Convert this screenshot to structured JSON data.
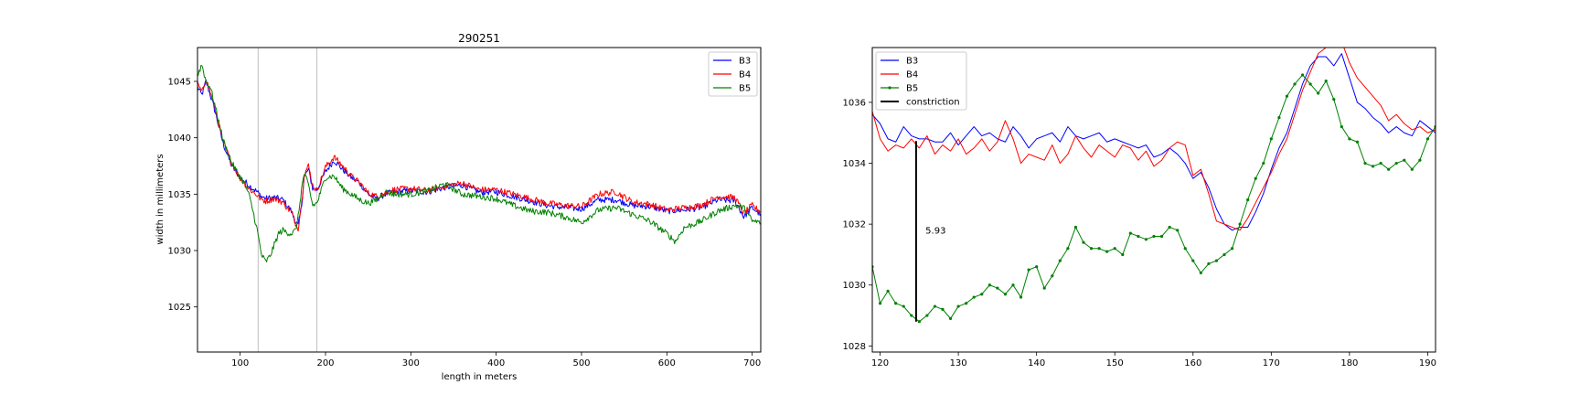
{
  "chart_data": [
    {
      "type": "line",
      "title": "290251",
      "xlabel": "length in meters",
      "ylabel": "width in millimeters",
      "xlim": [
        50,
        710
      ],
      "ylim": [
        1021,
        1048
      ],
      "xticks": [
        100,
        200,
        300,
        400,
        500,
        600,
        700
      ],
      "yticks": [
        1025,
        1030,
        1035,
        1040,
        1045
      ],
      "grid": false,
      "legend_position": "top-right",
      "vlines": [
        121,
        190
      ],
      "vline_color": "#b0b0b0",
      "series": [
        {
          "name": "B3",
          "color": "#0000ff",
          "x": [
            50,
            55,
            60,
            65,
            70,
            80,
            90,
            100,
            110,
            120,
            125,
            130,
            140,
            150,
            155,
            160,
            165,
            168,
            172,
            175,
            180,
            185,
            190,
            200,
            210,
            220,
            230,
            240,
            250,
            260,
            270,
            280,
            300,
            320,
            340,
            360,
            380,
            400,
            420,
            440,
            460,
            480,
            500,
            520,
            540,
            560,
            580,
            600,
            620,
            640,
            660,
            680,
            690,
            700,
            710
          ],
          "y": [
            1044.5,
            1043.8,
            1045.0,
            1043.8,
            1042.5,
            1039.5,
            1037.5,
            1036.5,
            1035.8,
            1035.2,
            1034.8,
            1034.6,
            1034.7,
            1034.5,
            1034.0,
            1033.5,
            1032.5,
            1032.2,
            1034.0,
            1036.5,
            1037.2,
            1035.5,
            1035.4,
            1037.0,
            1038.0,
            1037.2,
            1036.5,
            1036.0,
            1035.0,
            1034.6,
            1035.0,
            1035.2,
            1035.3,
            1035.2,
            1035.6,
            1035.8,
            1035.2,
            1035.2,
            1034.8,
            1034.4,
            1034.0,
            1033.8,
            1033.7,
            1034.5,
            1034.5,
            1034.0,
            1033.9,
            1033.5,
            1033.6,
            1033.8,
            1034.5,
            1034.4,
            1033.0,
            1033.8,
            1033.2
          ]
        },
        {
          "name": "B4",
          "color": "#ff0000",
          "x": [
            50,
            55,
            60,
            65,
            70,
            80,
            90,
            100,
            110,
            120,
            125,
            130,
            140,
            150,
            155,
            160,
            165,
            168,
            172,
            175,
            180,
            185,
            190,
            200,
            210,
            220,
            230,
            240,
            250,
            260,
            270,
            280,
            300,
            320,
            340,
            360,
            380,
            400,
            420,
            440,
            460,
            480,
            500,
            520,
            540,
            560,
            580,
            600,
            620,
            640,
            660,
            680,
            690,
            700,
            710
          ],
          "y": [
            1044.8,
            1044.0,
            1045.2,
            1044.0,
            1042.8,
            1039.6,
            1037.8,
            1036.4,
            1035.5,
            1034.9,
            1034.5,
            1034.4,
            1034.6,
            1034.3,
            1033.8,
            1033.4,
            1032.4,
            1032.0,
            1034.2,
            1036.8,
            1037.5,
            1035.8,
            1035.3,
            1037.4,
            1038.3,
            1037.5,
            1036.6,
            1036.0,
            1035.1,
            1034.8,
            1035.1,
            1035.4,
            1035.5,
            1035.3,
            1035.7,
            1036.0,
            1035.4,
            1035.4,
            1035.0,
            1034.6,
            1034.2,
            1034.0,
            1033.9,
            1035.0,
            1035.2,
            1034.3,
            1034.1,
            1033.6,
            1033.8,
            1034.0,
            1034.8,
            1034.7,
            1033.3,
            1034.0,
            1033.4
          ]
        },
        {
          "name": "B5",
          "color": "#008000",
          "x": [
            50,
            55,
            60,
            65,
            70,
            80,
            90,
            100,
            105,
            110,
            115,
            120,
            125,
            130,
            135,
            140,
            145,
            150,
            155,
            160,
            165,
            168,
            172,
            175,
            180,
            185,
            190,
            200,
            210,
            220,
            230,
            240,
            250,
            260,
            270,
            280,
            300,
            320,
            340,
            360,
            380,
            400,
            420,
            440,
            460,
            480,
            500,
            520,
            540,
            560,
            580,
            600,
            610,
            620,
            640,
            660,
            680,
            690,
            700,
            710
          ],
          "y": [
            1045.5,
            1046.5,
            1045.0,
            1044.5,
            1043.0,
            1039.8,
            1037.8,
            1036.5,
            1036.0,
            1035.0,
            1033.5,
            1031.8,
            1029.6,
            1029.0,
            1029.5,
            1030.5,
            1031.5,
            1031.8,
            1031.6,
            1031.5,
            1031.8,
            1033.0,
            1035.5,
            1036.8,
            1035.8,
            1034.0,
            1034.2,
            1036.5,
            1036.6,
            1035.5,
            1035.0,
            1034.5,
            1034.2,
            1034.5,
            1035.2,
            1035.0,
            1035.0,
            1035.3,
            1035.9,
            1035.0,
            1034.8,
            1034.6,
            1034.0,
            1033.5,
            1033.4,
            1033.0,
            1032.5,
            1033.6,
            1033.8,
            1033.2,
            1032.6,
            1031.5,
            1030.8,
            1032.0,
            1032.6,
            1033.5,
            1034.0,
            1033.8,
            1032.6,
            1032.5
          ]
        }
      ]
    },
    {
      "type": "line",
      "title": "",
      "xlabel": "",
      "ylabel": "",
      "xlim": [
        119,
        191
      ],
      "ylim": [
        1027.8,
        1037.8
      ],
      "xticks": [
        120,
        130,
        140,
        150,
        160,
        170,
        180,
        190
      ],
      "yticks": [
        1028,
        1030,
        1032,
        1034,
        1036
      ],
      "grid": false,
      "legend_position": "top-left",
      "annotation": {
        "text": "5.93",
        "x": 125.8,
        "y": 1031.8
      },
      "series": [
        {
          "name": "B3",
          "color": "#0000ff",
          "x": [
            119,
            120,
            121,
            122,
            123,
            124,
            125,
            126,
            127,
            128,
            129,
            130,
            131,
            132,
            133,
            134,
            135,
            136,
            137,
            138,
            139,
            140,
            141,
            142,
            143,
            144,
            145,
            146,
            147,
            148,
            149,
            150,
            151,
            152,
            153,
            154,
            155,
            156,
            157,
            158,
            159,
            160,
            161,
            162,
            163,
            164,
            165,
            166,
            167,
            168,
            169,
            170,
            171,
            172,
            173,
            174,
            175,
            176,
            177,
            178,
            179,
            180,
            181,
            182,
            183,
            184,
            185,
            186,
            187,
            188,
            189,
            190,
            191
          ],
          "y": [
            1035.6,
            1035.3,
            1034.8,
            1034.7,
            1035.2,
            1034.9,
            1034.8,
            1034.8,
            1034.7,
            1034.7,
            1035.0,
            1034.6,
            1034.9,
            1035.2,
            1034.9,
            1035.0,
            1034.8,
            1034.7,
            1035.2,
            1034.9,
            1034.5,
            1034.8,
            1034.9,
            1035.0,
            1034.7,
            1035.2,
            1034.9,
            1034.8,
            1034.9,
            1035.0,
            1034.7,
            1034.8,
            1034.7,
            1034.6,
            1034.5,
            1034.6,
            1034.2,
            1034.3,
            1034.5,
            1034.3,
            1034.0,
            1033.5,
            1033.7,
            1033.2,
            1032.5,
            1032.0,
            1031.8,
            1031.9,
            1031.9,
            1032.4,
            1033.0,
            1033.8,
            1034.5,
            1035.0,
            1035.8,
            1036.6,
            1037.2,
            1037.5,
            1037.5,
            1037.2,
            1037.6,
            1036.8,
            1036.0,
            1035.8,
            1035.5,
            1035.3,
            1035.0,
            1035.2,
            1035.0,
            1034.9,
            1035.4,
            1035.2,
            1035.0
          ]
        },
        {
          "name": "B4",
          "color": "#ff0000",
          "x": [
            119,
            120,
            121,
            122,
            123,
            124,
            125,
            126,
            127,
            128,
            129,
            130,
            131,
            132,
            133,
            134,
            135,
            136,
            137,
            138,
            139,
            140,
            141,
            142,
            143,
            144,
            145,
            146,
            147,
            148,
            149,
            150,
            151,
            152,
            153,
            154,
            155,
            156,
            157,
            158,
            159,
            160,
            161,
            162,
            163,
            164,
            165,
            166,
            167,
            168,
            169,
            170,
            171,
            172,
            173,
            174,
            175,
            176,
            177,
            178,
            179,
            180,
            181,
            182,
            183,
            184,
            185,
            186,
            187,
            188,
            189,
            190,
            191
          ],
          "y": [
            1035.7,
            1034.8,
            1034.4,
            1034.6,
            1034.5,
            1034.8,
            1034.5,
            1034.9,
            1034.3,
            1034.6,
            1034.4,
            1034.8,
            1034.3,
            1034.5,
            1034.8,
            1034.4,
            1034.7,
            1035.4,
            1034.8,
            1034.0,
            1034.3,
            1034.2,
            1034.1,
            1034.6,
            1034.0,
            1034.3,
            1034.9,
            1034.5,
            1034.2,
            1034.6,
            1034.4,
            1034.2,
            1034.6,
            1034.5,
            1034.1,
            1034.4,
            1033.9,
            1034.1,
            1034.5,
            1034.7,
            1034.6,
            1033.6,
            1033.8,
            1033.0,
            1032.1,
            1032.0,
            1031.9,
            1031.8,
            1032.2,
            1032.7,
            1033.2,
            1033.7,
            1034.3,
            1034.8,
            1035.6,
            1036.4,
            1037.0,
            1037.6,
            1037.8,
            1038.2,
            1038.0,
            1037.3,
            1036.8,
            1036.5,
            1036.2,
            1035.9,
            1035.4,
            1035.6,
            1035.3,
            1035.1,
            1035.2,
            1035.0,
            1035.1
          ]
        },
        {
          "name": "B5",
          "color": "#008000",
          "x": [
            119,
            120,
            121,
            122,
            123,
            124,
            125,
            126,
            127,
            128,
            129,
            130,
            131,
            132,
            133,
            134,
            135,
            136,
            137,
            138,
            139,
            140,
            141,
            142,
            143,
            144,
            145,
            146,
            147,
            148,
            149,
            150,
            151,
            152,
            153,
            154,
            155,
            156,
            157,
            158,
            159,
            160,
            161,
            162,
            163,
            164,
            165,
            166,
            167,
            168,
            169,
            170,
            171,
            172,
            173,
            174,
            175,
            176,
            177,
            178,
            179,
            180,
            181,
            182,
            183,
            184,
            185,
            186,
            187,
            188,
            189,
            190,
            191
          ],
          "y": [
            1030.6,
            1029.4,
            1029.8,
            1029.4,
            1029.3,
            1029.0,
            1028.8,
            1029.0,
            1029.3,
            1029.2,
            1028.9,
            1029.3,
            1029.4,
            1029.6,
            1029.7,
            1030.0,
            1029.9,
            1029.7,
            1030.0,
            1029.6,
            1030.5,
            1030.6,
            1029.9,
            1030.3,
            1030.8,
            1031.2,
            1031.9,
            1031.4,
            1031.2,
            1031.2,
            1031.1,
            1031.2,
            1031.0,
            1031.7,
            1031.6,
            1031.5,
            1031.6,
            1031.6,
            1031.9,
            1031.8,
            1031.2,
            1030.8,
            1030.4,
            1030.7,
            1030.8,
            1031.0,
            1031.2,
            1032.0,
            1032.8,
            1033.5,
            1034.0,
            1034.8,
            1035.5,
            1036.2,
            1036.6,
            1036.9,
            1036.6,
            1036.3,
            1036.7,
            1036.1,
            1035.2,
            1034.8,
            1034.7,
            1034.0,
            1033.9,
            1034.0,
            1033.8,
            1034.0,
            1034.1,
            1033.8,
            1034.1,
            1034.8,
            1035.2
          ]
        },
        {
          "name": "constriction",
          "color": "#000000",
          "x": [
            124.6,
            124.6
          ],
          "y": [
            1028.8,
            1034.73
          ]
        }
      ]
    }
  ]
}
